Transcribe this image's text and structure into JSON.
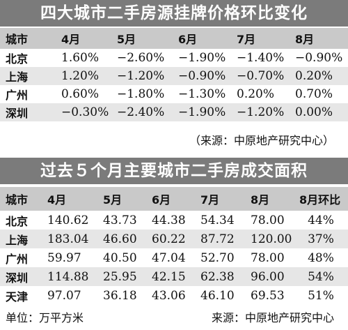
{
  "table1": {
    "title": "四大城市二手房源挂牌价格环比变化",
    "headers": [
      "城市",
      "4月",
      "5月",
      "6月",
      "7月",
      "8月"
    ],
    "rows": [
      [
        "北京",
        "1.60%",
        "−2.60%",
        "−1.90%",
        "−1.40%",
        "−0.90%"
      ],
      [
        "上海",
        "1.20%",
        "−1.20%",
        "−0.90%",
        "−0.70%",
        "0.20%"
      ],
      [
        "广州",
        "0.60%",
        "−1.80%",
        "−1.30%",
        "0.20%",
        "0.70%"
      ],
      [
        "深圳",
        "−0.30%",
        "−2.40%",
        "−1.90%",
        "−1.20%",
        "0.00%"
      ]
    ],
    "source": "（来源：中原地产研究中心）"
  },
  "table2": {
    "title": "过去５个月主要城市二手房成交面积",
    "headers": [
      "城市",
      "4月",
      "5月",
      "6月",
      "7月",
      "8月",
      "8月环比"
    ],
    "rows": [
      [
        "北京",
        "140.62",
        "43.73",
        "44.38",
        "54.34",
        "78.00",
        "44%"
      ],
      [
        "上海",
        "183.04",
        "46.60",
        "60.22",
        "87.72",
        "120.00",
        "37%"
      ],
      [
        "广州",
        "59.97",
        "40.50",
        "47.04",
        "52.70",
        "78.00",
        "48%"
      ],
      [
        "深圳",
        "114.88",
        "25.95",
        "42.15",
        "62.38",
        "96.00",
        "54%"
      ],
      [
        "天津",
        "97.07",
        "36.18",
        "43.06",
        "46.10",
        "69.53",
        "51%"
      ]
    ],
    "unit": "单位：万平方米",
    "source": "来源：中原地产研究中心"
  }
}
